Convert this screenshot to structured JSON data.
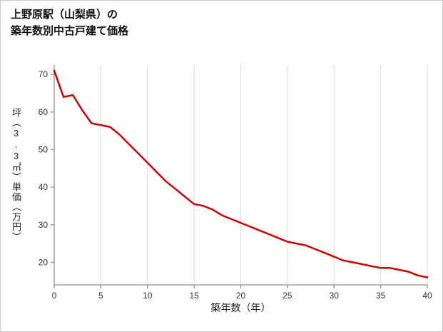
{
  "chart_data": {
    "type": "line",
    "title_lines": [
      "上野原駅（山梨県）の",
      "築年数別中古戸建て価格"
    ],
    "xlabel": "築年数（年）",
    "ylabel": "坪（3.3㎡）単価（万円）",
    "x": [
      0,
      1,
      2,
      3,
      4,
      5,
      6,
      7,
      8,
      9,
      10,
      11,
      12,
      13,
      14,
      15,
      16,
      17,
      18,
      19,
      20,
      21,
      22,
      23,
      24,
      25,
      26,
      27,
      28,
      29,
      30,
      31,
      32,
      33,
      34,
      35,
      36,
      37,
      38,
      39,
      40
    ],
    "values": [
      71,
      64,
      64.5,
      60.5,
      57,
      56.5,
      56,
      54,
      51.5,
      49,
      46.5,
      44,
      41.5,
      39.5,
      37.5,
      35.5,
      35,
      34,
      32.5,
      31.5,
      30.5,
      29.5,
      28.5,
      27.5,
      26.5,
      25.5,
      25,
      24.5,
      23.5,
      22.5,
      21.5,
      20.5,
      20,
      19.5,
      19,
      18.5,
      18.5,
      18,
      17.5,
      16.5,
      16
    ],
    "xlim": [
      0,
      40
    ],
    "ylim": [
      14,
      72.5
    ],
    "xticks": [
      0,
      5,
      10,
      15,
      20,
      25,
      30,
      35,
      40
    ],
    "yticks": [
      20,
      30,
      40,
      50,
      60,
      70
    ],
    "line_color": "#cc0000",
    "axis_color": "#9e9e9e",
    "grid_color": "#d9d9d9",
    "grid": "vertical-only",
    "legend": "none"
  }
}
